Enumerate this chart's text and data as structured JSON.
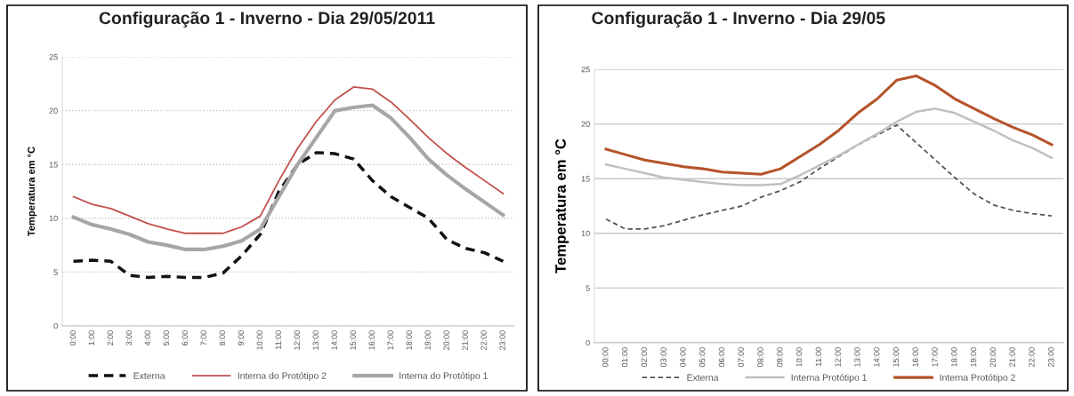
{
  "chart_data": [
    {
      "type": "line",
      "title": "Configuração 1 - Inverno - Dia 29/05/2011",
      "ylabel": "Temperatura em °C",
      "categories": [
        "0:00",
        "1:00",
        "2:00",
        "3:00",
        "4:00",
        "5:00",
        "6:00",
        "7:00",
        "8:00",
        "9:00",
        "10:00",
        "11:00",
        "12:00",
        "13:00",
        "14:00",
        "15:00",
        "16:00",
        "17:00",
        "18:00",
        "19:00",
        "20:00",
        "21:00",
        "22:00",
        "23:00"
      ],
      "series": [
        {
          "name": "Externa",
          "color": "#111111",
          "line_style": "dashed",
          "values": [
            6,
            6.1,
            6,
            4.7,
            4.5,
            4.6,
            4.5,
            4.5,
            4.9,
            6.5,
            8.5,
            12.5,
            15,
            16.1,
            16,
            15.5,
            13.5,
            12,
            11,
            10,
            8,
            7.2,
            6.8,
            6
          ]
        },
        {
          "name": "Interna do Protótipo 2",
          "color": "#c0504d",
          "line_style": "solid",
          "values": [
            12,
            11.3,
            10.9,
            10.2,
            9.5,
            9,
            8.6,
            8.6,
            8.6,
            9.2,
            10.2,
            13.5,
            16.5,
            19,
            21,
            22.2,
            22,
            20.8,
            19.2,
            17.5,
            16,
            14.7,
            13.5,
            12.3
          ]
        },
        {
          "name": "Interna do Protótipo 1",
          "color": "#a6a6a6",
          "line_style": "solid",
          "values": [
            10.1,
            9.4,
            9,
            8.5,
            7.8,
            7.5,
            7.1,
            7.1,
            7.4,
            7.9,
            9,
            12,
            15,
            17.5,
            20,
            20.3,
            20.5,
            19.3,
            17.5,
            15.5,
            14,
            12.7,
            11.5,
            10.3
          ]
        }
      ],
      "ylim": [
        0,
        25
      ],
      "yticks": [
        0,
        5,
        10,
        15,
        20,
        25
      ],
      "grid": "y",
      "legend": "bottom",
      "marker": "none"
    },
    {
      "type": "line",
      "title": "Configuração 1 - Inverno - Dia 29/05",
      "ylabel": "Temperatura em °C",
      "categories": [
        "00:00",
        "01:00",
        "02:00",
        "03:00",
        "04:00",
        "05:00",
        "06:00",
        "07:00",
        "08:00",
        "09:00",
        "10:00",
        "11:00",
        "12:00",
        "13:00",
        "14:00",
        "15:00",
        "16:00",
        "17:00",
        "18:00",
        "19:00",
        "20:00",
        "21:00",
        "22:00",
        "23:00"
      ],
      "series": [
        {
          "name": "Externa",
          "color": "#555555",
          "line_style": "dashed",
          "values": [
            11.3,
            10.4,
            10.4,
            10.7,
            11.2,
            11.7,
            12.1,
            12.5,
            13.3,
            13.9,
            14.7,
            15.9,
            17,
            18.1,
            19,
            19.9,
            18.3,
            16.7,
            15.1,
            13.6,
            12.6,
            12.1,
            11.8,
            11.6
          ]
        },
        {
          "name": "Interna Protótipo 1",
          "color": "#c0c0c0",
          "line_style": "solid",
          "values": [
            16.3,
            15.9,
            15.5,
            15.1,
            14.9,
            14.7,
            14.5,
            14.4,
            14.4,
            14.5,
            15.3,
            16.2,
            17.1,
            18.1,
            19.1,
            20.2,
            21.1,
            21.4,
            21,
            20.2,
            19.4,
            18.5,
            17.8,
            16.9
          ]
        },
        {
          "name": "Interna Protótipo 2",
          "color": "#b5532a",
          "line_style": "solid",
          "values": [
            17.7,
            17.2,
            16.7,
            16.4,
            16.1,
            15.9,
            15.6,
            15.5,
            15.4,
            15.9,
            17,
            18.1,
            19.4,
            21,
            22.3,
            24,
            24.4,
            23.5,
            22.3,
            21.4,
            20.5,
            19.7,
            19,
            18.1
          ]
        }
      ],
      "ylim": [
        0,
        25
      ],
      "yticks": [
        0,
        5,
        10,
        15,
        20,
        25
      ],
      "grid": "y",
      "legend": "bottom",
      "marker": "none"
    }
  ]
}
